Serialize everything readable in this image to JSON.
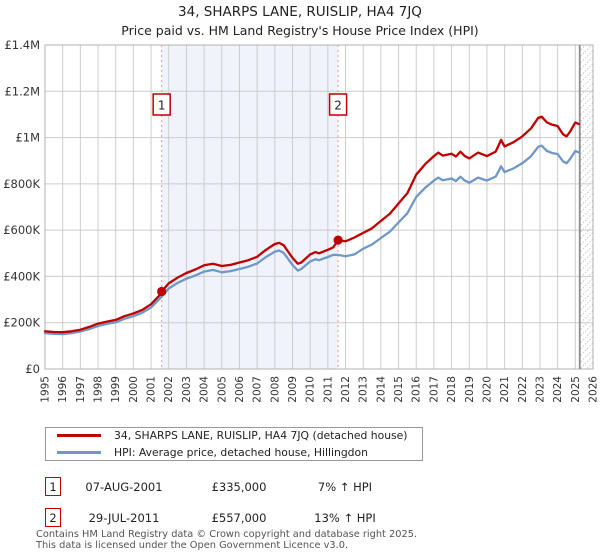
{
  "title": "34, SHARPS LANE, RUISLIP, HA4 7JQ",
  "subtitle": "Price paid vs. HM Land Registry's House Price Index (HPI)",
  "colors": {
    "property": "#c00000",
    "hpi": "#6f98c9",
    "grid": "#cccccc",
    "plot_border": "#b0b0b0",
    "shade": "#f0f3fb",
    "dashed_marker": "#ee9595",
    "hatch_line": "#c4c4c4",
    "hatch_edge": "#8a8a8a",
    "axis_text": "#333333",
    "marker_box_border": "#c00000",
    "marker_box_text": "#222222"
  },
  "chart_data": {
    "type": "line",
    "title": "34, SHARPS LANE, RUISLIP, HA4 7JQ — Price paid vs. HM Land Registry's House Price Index (HPI)",
    "xlabel": "",
    "ylabel": "",
    "xlim": [
      1995,
      2026
    ],
    "ylim": [
      0,
      1400000
    ],
    "grid": true,
    "legend_position": "bottom",
    "xtick_labels": [
      "1995",
      "1996",
      "1997",
      "1998",
      "1999",
      "2000",
      "2001",
      "2002",
      "2003",
      "2004",
      "2005",
      "2006",
      "2007",
      "2008",
      "2009",
      "2010",
      "2011",
      "2012",
      "2013",
      "2014",
      "2015",
      "2016",
      "2017",
      "2018",
      "2019",
      "2020",
      "2021",
      "2022",
      "2023",
      "2024",
      "2025",
      "2026"
    ],
    "ytick_values": [
      0,
      200000,
      400000,
      600000,
      800000,
      1000000,
      1200000,
      1400000
    ],
    "ytick_labels": [
      "£0",
      "£200K",
      "£400K",
      "£600K",
      "£800K",
      "£1M",
      "£1.2M",
      "£1.4M"
    ],
    "shaded_span": [
      2001.6,
      2011.58
    ],
    "hatched_span": [
      2025.25,
      2026
    ],
    "x": [
      1995.0,
      1995.5,
      1996.0,
      1996.5,
      1997.0,
      1997.5,
      1998.0,
      1998.5,
      1999.0,
      1999.5,
      2000.0,
      2000.5,
      2001.0,
      2001.5,
      2001.6,
      2002.0,
      2002.5,
      2003.0,
      2003.5,
      2004.0,
      2004.5,
      2005.0,
      2005.5,
      2006.0,
      2006.5,
      2007.0,
      2007.5,
      2008.0,
      2008.25,
      2008.5,
      2009.0,
      2009.3,
      2009.5,
      2010.0,
      2010.3,
      2010.5,
      2011.0,
      2011.3,
      2011.58,
      2012.0,
      2012.5,
      2013.0,
      2013.5,
      2014.0,
      2014.5,
      2015.0,
      2015.5,
      2016.0,
      2016.5,
      2017.0,
      2017.25,
      2017.5,
      2018.0,
      2018.25,
      2018.5,
      2018.75,
      2019.0,
      2019.5,
      2020.0,
      2020.5,
      2020.8,
      2021.0,
      2021.5,
      2022.0,
      2022.5,
      2022.9,
      2023.1,
      2023.4,
      2023.7,
      2024.0,
      2024.3,
      2024.5,
      2024.7,
      2025.0,
      2025.2
    ],
    "series": [
      {
        "name": "34, SHARPS LANE, RUISLIP, HA4 7JQ (detached house)",
        "color": "#c00000",
        "values": [
          163000,
          160000,
          159000,
          163000,
          170000,
          182000,
          196000,
          205000,
          212000,
          228000,
          240000,
          255000,
          280000,
          320000,
          335000,
          370000,
          395000,
          415000,
          430000,
          448000,
          455000,
          445000,
          450000,
          460000,
          470000,
          485000,
          515000,
          540000,
          545000,
          535000,
          480000,
          455000,
          460000,
          495000,
          505000,
          500000,
          515000,
          525000,
          557000,
          552000,
          568000,
          588000,
          608000,
          640000,
          670000,
          715000,
          760000,
          840000,
          885000,
          920000,
          935000,
          922000,
          930000,
          918000,
          939000,
          920000,
          910000,
          935000,
          920000,
          940000,
          990000,
          962000,
          980000,
          1005000,
          1040000,
          1085000,
          1090000,
          1065000,
          1055000,
          1050000,
          1015000,
          1005000,
          1025000,
          1065000,
          1058000
        ]
      },
      {
        "name": "HPI: Average price, detached house, Hillingdon",
        "color": "#6f98c9",
        "values": [
          155000,
          152000,
          151000,
          155000,
          162000,
          173000,
          186000,
          195000,
          202000,
          217000,
          228000,
          243000,
          266000,
          304000,
          313000,
          348000,
          372000,
          390000,
          404000,
          421000,
          428000,
          418000,
          423000,
          432000,
          442000,
          456000,
          484000,
          507000,
          512000,
          502000,
          450000,
          425000,
          432000,
          465000,
          474000,
          470000,
          484000,
          493000,
          493000,
          487000,
          495000,
          520000,
          538000,
          566000,
          593000,
          633000,
          673000,
          743000,
          783000,
          814000,
          827000,
          816000,
          823000,
          812000,
          831000,
          814000,
          805000,
          827000,
          814000,
          832000,
          876000,
          851000,
          867000,
          889000,
          920000,
          960000,
          965000,
          942000,
          933000,
          929000,
          898000,
          889000,
          907000,
          942000,
          936000
        ]
      }
    ],
    "sale_markers": [
      {
        "label": "1",
        "x": 2001.6,
        "value": 335000
      },
      {
        "label": "2",
        "x": 2011.58,
        "value": 557000
      }
    ]
  },
  "legend": {
    "items": [
      {
        "label": "34, SHARPS LANE, RUISLIP, HA4 7JQ (detached house)",
        "color": "#c00000"
      },
      {
        "label": "HPI: Average price, detached house, Hillingdon",
        "color": "#6f98c9"
      }
    ]
  },
  "annotations": [
    {
      "num": "1",
      "date": "07-AUG-2001",
      "price": "£335,000",
      "hpi": "7% ↑ HPI"
    },
    {
      "num": "2",
      "date": "29-JUL-2011",
      "price": "£557,000",
      "hpi": "13% ↑ HPI"
    }
  ],
  "footer": {
    "line1": "Contains HM Land Registry data © Crown copyright and database right 2025.",
    "line2": "This data is licensed under the Open Government Licence v3.0."
  }
}
